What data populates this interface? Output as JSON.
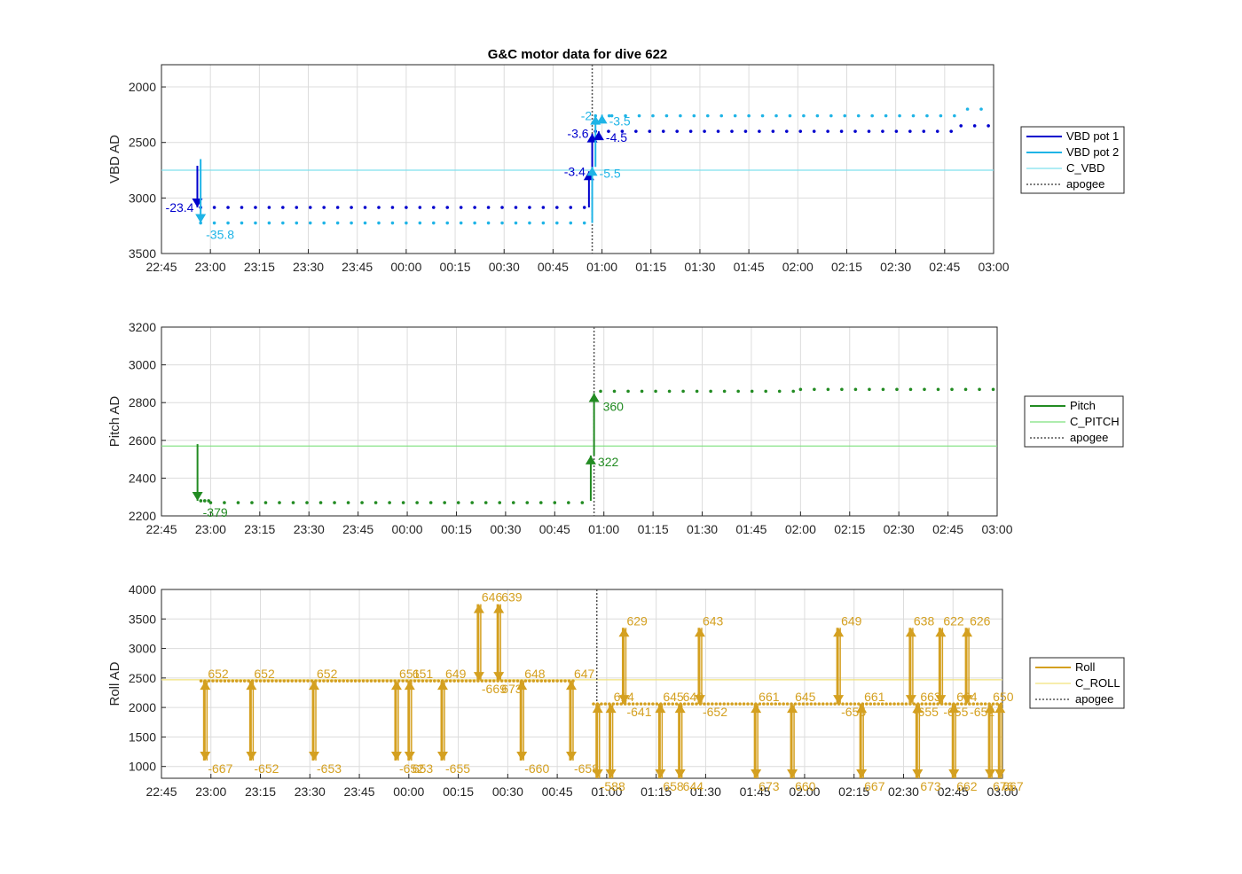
{
  "chart_data": [
    {
      "type": "scatter",
      "title": "G&C motor data for dive 622",
      "ylabel": "VBD AD",
      "xlabel": "",
      "ylim": [
        3500,
        1800
      ],
      "xlim": [
        "22:45",
        "03:00"
      ],
      "x_ticks": [
        "22:45",
        "23:00",
        "23:15",
        "23:30",
        "23:45",
        "00:00",
        "00:15",
        "00:30",
        "00:45",
        "01:00",
        "01:15",
        "01:30",
        "01:45",
        "02:00",
        "02:15",
        "02:30",
        "02:45",
        "03:00"
      ],
      "y_ticks": [
        2000,
        2500,
        3000,
        3500
      ],
      "grid": true,
      "legend": "right",
      "legend_entries": [
        "VBD pot 1",
        "VBD pot 2",
        "C_VBD",
        "apogee"
      ],
      "colors": {
        "pot1": "#0000cd",
        "pot2": "#1fb4e6",
        "c_line": "#7fe0ee",
        "apogee": "#555555"
      },
      "c_line_value": 2750,
      "apogee_time": "00:57",
      "series": [
        {
          "name": "VBD pot 1",
          "segments": [
            {
              "from": "22:57",
              "to": "00:56",
              "y": 3085
            },
            {
              "from": "00:58",
              "to": "01:01",
              "y": 2400
            },
            {
              "from": "01:02",
              "to": "02:50",
              "y": 2400
            },
            {
              "from": "02:50",
              "to": "03:00",
              "y": 2350
            }
          ]
        },
        {
          "name": "VBD pot 2",
          "segments": [
            {
              "from": "22:57",
              "to": "00:56",
              "y": 3225
            },
            {
              "from": "00:58",
              "to": "01:03",
              "y": 2260
            },
            {
              "from": "01:03",
              "to": "02:52",
              "y": 2260
            },
            {
              "from": "02:52",
              "to": "03:00",
              "y": 2200
            }
          ]
        }
      ],
      "moves": [
        {
          "series": "VBD pot 1",
          "t": "22:56",
          "from": 2710,
          "to": 3085,
          "label": "-23.4",
          "label_side": "left"
        },
        {
          "series": "VBD pot 2",
          "t": "22:57",
          "from": 2650,
          "to": 3225,
          "label": "-35.8",
          "label_side": "below"
        },
        {
          "series": "VBD pot 1",
          "t": "00:56",
          "from": 3085,
          "to": 2760,
          "label": "-3.4",
          "label_side": "left"
        },
        {
          "series": "VBD pot 1",
          "t": "00:57",
          "from": 2760,
          "to": 2420,
          "label": "-3.6",
          "label_side": "left"
        },
        {
          "series": "VBD pot 2",
          "t": "00:57",
          "from": 3225,
          "to": 2720,
          "label": "-5.5",
          "label_side": "right"
        },
        {
          "series": "VBD pot 2",
          "t": "00:58",
          "from": 2720,
          "to": 2260,
          "label": "-2",
          "label_side": "left"
        },
        {
          "series": "VBD pot 1",
          "t": "00:59",
          "from": 2430,
          "to": 2400,
          "label": "-4.5",
          "label_side": "right"
        },
        {
          "series": "VBD pot 2",
          "t": "01:00",
          "from": 2270,
          "to": 2250,
          "label": "-3.5",
          "label_side": "right"
        }
      ]
    },
    {
      "type": "scatter",
      "ylabel": "Pitch AD",
      "xlabel": "",
      "ylim": [
        2200,
        3200
      ],
      "xlim": [
        "22:45",
        "03:00"
      ],
      "x_ticks": [
        "22:45",
        "23:00",
        "23:15",
        "23:30",
        "23:45",
        "00:00",
        "00:15",
        "00:30",
        "00:45",
        "01:00",
        "01:15",
        "01:30",
        "01:45",
        "02:00",
        "02:15",
        "02:30",
        "02:45",
        "03:00"
      ],
      "y_ticks": [
        2200,
        2400,
        2600,
        2800,
        3000,
        3200
      ],
      "grid": true,
      "legend": "right",
      "legend_entries": [
        "Pitch",
        "C_PITCH",
        "apogee"
      ],
      "colors": {
        "pitch": "#228b22",
        "c_line": "#7ee07e",
        "apogee": "#555555"
      },
      "c_line_value": 2570,
      "apogee_time": "00:57",
      "series": [
        {
          "name": "Pitch",
          "segments": [
            {
              "from": "22:57",
              "to": "23:00",
              "y": 2280
            },
            {
              "from": "23:00",
              "to": "00:55",
              "y": 2270
            },
            {
              "from": "00:59",
              "to": "02:00",
              "y": 2860
            },
            {
              "from": "02:00",
              "to": "03:00",
              "y": 2870
            }
          ]
        }
      ],
      "moves": [
        {
          "series": "Pitch",
          "t": "22:56",
          "from": 2580,
          "to": 2280,
          "label": "-379",
          "label_side": "below"
        },
        {
          "series": "Pitch",
          "t": "00:56",
          "from": 2280,
          "to": 2520,
          "label": "322",
          "label_side": "right"
        },
        {
          "series": "Pitch",
          "t": "00:57",
          "from": 2520,
          "to": 2850,
          "label": "360",
          "label_side": "below-right"
        }
      ]
    },
    {
      "type": "scatter",
      "ylabel": "Roll AD",
      "xlabel": "",
      "ylim": [
        800,
        4000
      ],
      "xlim": [
        "22:45",
        "03:00"
      ],
      "x_ticks": [
        "22:45",
        "23:00",
        "23:15",
        "23:30",
        "23:45",
        "00:00",
        "00:15",
        "00:30",
        "00:45",
        "01:00",
        "01:15",
        "01:30",
        "01:45",
        "02:00",
        "02:15",
        "02:30",
        "02:45",
        "03:00"
      ],
      "y_ticks": [
        1000,
        1500,
        2000,
        2500,
        3000,
        3500,
        4000
      ],
      "grid": true,
      "legend": "right",
      "legend_entries": [
        "Roll",
        "C_ROLL",
        "apogee"
      ],
      "colors": {
        "roll": "#d4a020",
        "c_line": "#f2e27a",
        "apogee": "#555555"
      },
      "c_line_value": 2470,
      "apogee_time": "00:57",
      "series": [
        {
          "name": "Roll",
          "segments": [
            {
              "from": "22:57",
              "to": "00:50",
              "y": 2450
            },
            {
              "from": "00:56",
              "to": "03:00",
              "y": 2060
            }
          ]
        }
      ],
      "roll_events": [
        {
          "t": "22:58",
          "min": 1100,
          "max": 2450,
          "max_label": "652",
          "min_label": "-667"
        },
        {
          "t": "23:12",
          "min": 1100,
          "max": 2450,
          "max_label": "652",
          "min_label": "-652"
        },
        {
          "t": "23:31",
          "min": 1100,
          "max": 2450,
          "max_label": "652",
          "min_label": "-653"
        },
        {
          "t": "23:56",
          "min": 1100,
          "max": 2450,
          "max_label": "651",
          "min_label": "-652"
        },
        {
          "t": "00:00",
          "min": 1100,
          "max": 2450,
          "max_label": "651",
          "min_label": "653"
        },
        {
          "t": "00:10",
          "min": 1100,
          "max": 2450,
          "max_label": "649",
          "min_label": "-655"
        },
        {
          "t": "00:21",
          "min": 2450,
          "max": 3750,
          "max_label": "646",
          "min_label": "-669"
        },
        {
          "t": "00:27",
          "min": 2450,
          "max": 3750,
          "max_label": "639",
          "min_label": "673"
        },
        {
          "t": "00:34",
          "min": 1100,
          "max": 2450,
          "max_label": "648",
          "min_label": "-660"
        },
        {
          "t": "00:49",
          "min": 1100,
          "max": 2450,
          "max_label": "647",
          "min_label": "-658"
        },
        {
          "t": "00:57",
          "min": 800,
          "max": 2060,
          "max_label": "",
          "min_label": "-588"
        },
        {
          "t": "01:01",
          "min": 800,
          "max": 2060,
          "max_label": "614",
          "min_label": ""
        },
        {
          "t": "01:05",
          "min": 2060,
          "max": 3350,
          "max_label": "629",
          "min_label": "-641"
        },
        {
          "t": "01:16",
          "min": 800,
          "max": 2060,
          "max_label": "645",
          "min_label": "658"
        },
        {
          "t": "01:22",
          "min": 800,
          "max": 2060,
          "max_label": "648",
          "min_label": "644"
        },
        {
          "t": "01:28",
          "min": 2060,
          "max": 3350,
          "max_label": "643",
          "min_label": "-652"
        },
        {
          "t": "01:45",
          "min": 800,
          "max": 2060,
          "max_label": "661",
          "min_label": "673"
        },
        {
          "t": "01:56",
          "min": 800,
          "max": 2060,
          "max_label": "645",
          "min_label": "660"
        },
        {
          "t": "02:10",
          "min": 2060,
          "max": 3350,
          "max_label": "649",
          "min_label": "-655"
        },
        {
          "t": "02:17",
          "min": 800,
          "max": 2060,
          "max_label": "661",
          "min_label": "667"
        },
        {
          "t": "02:32",
          "min": 2060,
          "max": 3350,
          "max_label": "638",
          "min_label": "-655"
        },
        {
          "t": "02:34",
          "min": 800,
          "max": 2060,
          "max_label": "663",
          "min_label": "673"
        },
        {
          "t": "02:41",
          "min": 2060,
          "max": 3350,
          "max_label": "622",
          "min_label": "-655"
        },
        {
          "t": "02:45",
          "min": 800,
          "max": 2060,
          "max_label": "664",
          "min_label": "662"
        },
        {
          "t": "02:49",
          "min": 2060,
          "max": 3350,
          "max_label": "626",
          "min_label": "-652"
        },
        {
          "t": "02:56",
          "min": 800,
          "max": 2060,
          "max_label": "650",
          "min_label": "676"
        },
        {
          "t": "02:59",
          "min": 800,
          "max": 2060,
          "max_label": "",
          "min_label": "667"
        }
      ]
    }
  ]
}
